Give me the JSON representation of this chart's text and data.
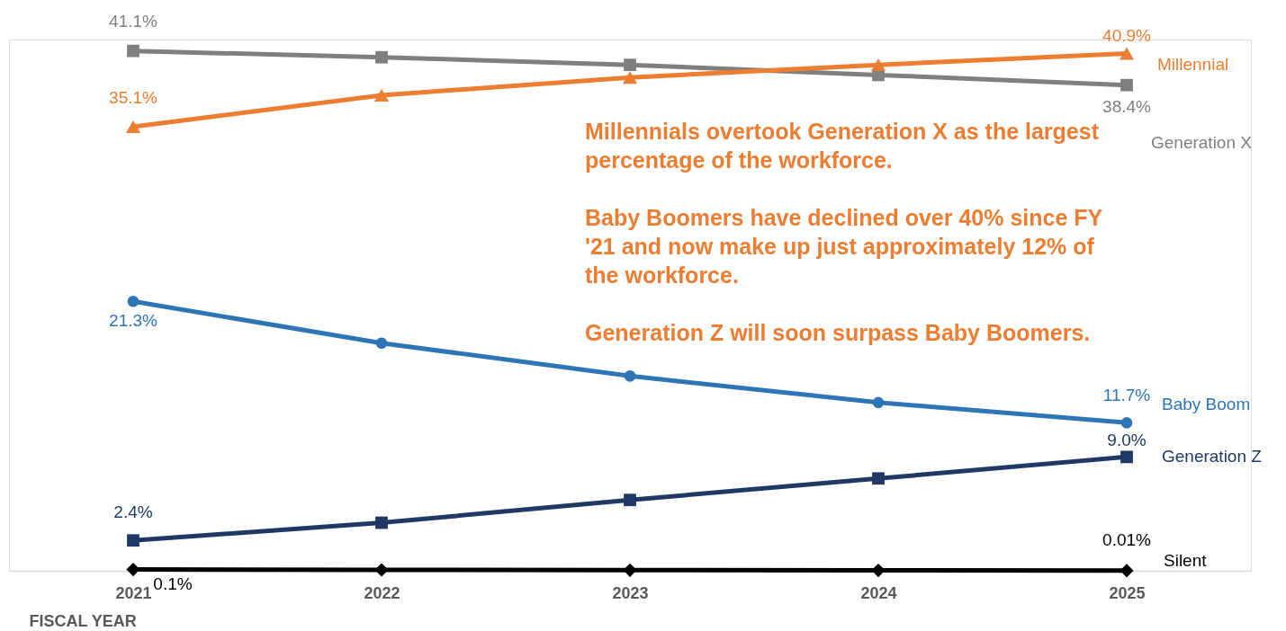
{
  "chart_data": {
    "type": "line",
    "xlabel": "FISCAL YEAR",
    "categories": [
      "2021",
      "2022",
      "2023",
      "2024",
      "2025"
    ],
    "ylim": [
      0,
      42
    ],
    "tick_labels": "x",
    "grid": false,
    "annotations": [
      "Millennials overtook Generation X as the largest percentage of the workforce.",
      "Baby Boomers have declined over 40% since FY '21 and now make up just approximately 12% of the workforce.",
      "Generation Z will soon surpass Baby Boomers."
    ],
    "series": [
      {
        "name": "Generation X",
        "color": "#7f7f7f",
        "marker": "square",
        "values": [
          41.1,
          40.6,
          40.0,
          39.2,
          38.4
        ],
        "value_labels": [
          "41.1%",
          null,
          null,
          null,
          "38.4%"
        ]
      },
      {
        "name": "Millennial",
        "color": "#ed7d31",
        "marker": "triangle",
        "values": [
          35.1,
          37.6,
          39.0,
          40.0,
          40.9
        ],
        "value_labels": [
          "35.1%",
          null,
          null,
          null,
          "40.9%"
        ]
      },
      {
        "name": "Baby Boom",
        "color": "#2e75b6",
        "marker": "circle",
        "values": [
          21.3,
          18.0,
          15.4,
          13.3,
          11.7
        ],
        "value_labels": [
          "21.3%",
          null,
          null,
          null,
          "11.7%"
        ]
      },
      {
        "name": "Generation Z",
        "color": "#1f3864",
        "marker": "square",
        "values": [
          2.4,
          3.8,
          5.6,
          7.3,
          9.0
        ],
        "value_labels": [
          "2.4%",
          null,
          null,
          null,
          "9.0%"
        ]
      },
      {
        "name": "Silent",
        "color": "#000000",
        "marker": "diamond",
        "values": [
          0.1,
          0.07,
          0.05,
          0.03,
          0.01
        ],
        "value_labels": [
          "0.1%",
          null,
          null,
          null,
          "0.01%"
        ]
      }
    ]
  }
}
